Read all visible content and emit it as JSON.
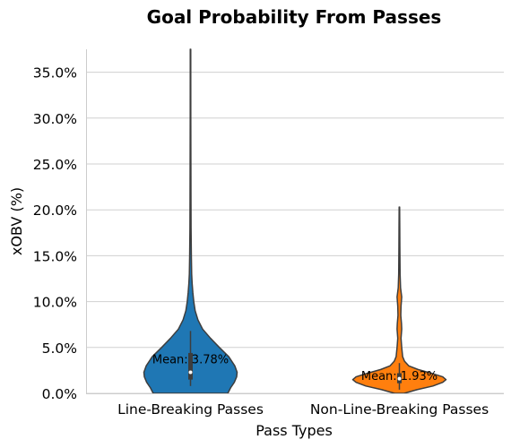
{
  "chart_data": {
    "type": "violin",
    "title": "Goal Probability From Passes",
    "xlabel": "Pass Types",
    "ylabel": "xOBV (%)",
    "ylim": [
      0,
      37.5
    ],
    "yticks": [
      0,
      5,
      10,
      15,
      20,
      25,
      30,
      35
    ],
    "ytick_labels": [
      "0.0%",
      "5.0%",
      "10.0%",
      "15.0%",
      "20.0%",
      "25.0%",
      "30.0%",
      "35.0%"
    ],
    "grid": "horizontal",
    "categories": [
      "Line-Breaking Passes",
      "Non-Line-Breaking Passes"
    ],
    "series": [
      {
        "category": "Line-Breaking Passes",
        "color": "#1f77b4",
        "mean": 3.78,
        "mean_label": "Mean: 3.78%",
        "max": 37.5,
        "median": 2.3,
        "q1": 1.5,
        "q3": 4.4,
        "whisker_low": 0.8,
        "whisker_high": 6.8,
        "density_profile": [
          [
            0,
            0.8
          ],
          [
            0.6,
            0.86
          ],
          [
            1.2,
            0.94
          ],
          [
            1.8,
            0.99
          ],
          [
            2.3,
            1.0
          ],
          [
            3,
            0.95
          ],
          [
            4,
            0.82
          ],
          [
            5,
            0.62
          ],
          [
            6,
            0.43
          ],
          [
            7,
            0.26
          ],
          [
            8,
            0.16
          ],
          [
            9,
            0.1
          ],
          [
            10,
            0.07
          ],
          [
            11,
            0.05
          ],
          [
            12,
            0.035
          ],
          [
            13,
            0.025
          ],
          [
            15,
            0.018
          ],
          [
            18,
            0.012
          ],
          [
            21,
            0.01
          ],
          [
            25,
            0.008
          ],
          [
            30,
            0.006
          ],
          [
            37.5,
            0.005
          ]
        ]
      },
      {
        "category": "Non-Line-Breaking Passes",
        "color": "#ff7f0e",
        "mean": 1.93,
        "mean_label": "Mean: 1.93%",
        "max": 20.3,
        "median": 1.6,
        "q1": 1.1,
        "q3": 2.2,
        "whisker_low": 0.4,
        "whisker_high": 3.3,
        "density_profile": [
          [
            0,
            0.1
          ],
          [
            0.4,
            0.38
          ],
          [
            0.8,
            0.72
          ],
          [
            1.2,
            0.93
          ],
          [
            1.5,
            1.0
          ],
          [
            1.8,
            0.93
          ],
          [
            2.2,
            0.68
          ],
          [
            2.6,
            0.4
          ],
          [
            3,
            0.2
          ],
          [
            3.5,
            0.11
          ],
          [
            4,
            0.07
          ],
          [
            5,
            0.05
          ],
          [
            6,
            0.035
          ],
          [
            7,
            0.05
          ],
          [
            7.6,
            0.045
          ],
          [
            8.5,
            0.03
          ],
          [
            9.5,
            0.035
          ],
          [
            10.5,
            0.05
          ],
          [
            11.5,
            0.025
          ],
          [
            13,
            0.015
          ],
          [
            16,
            0.01
          ],
          [
            18,
            0.008
          ],
          [
            20.3,
            0.005
          ]
        ]
      }
    ]
  }
}
